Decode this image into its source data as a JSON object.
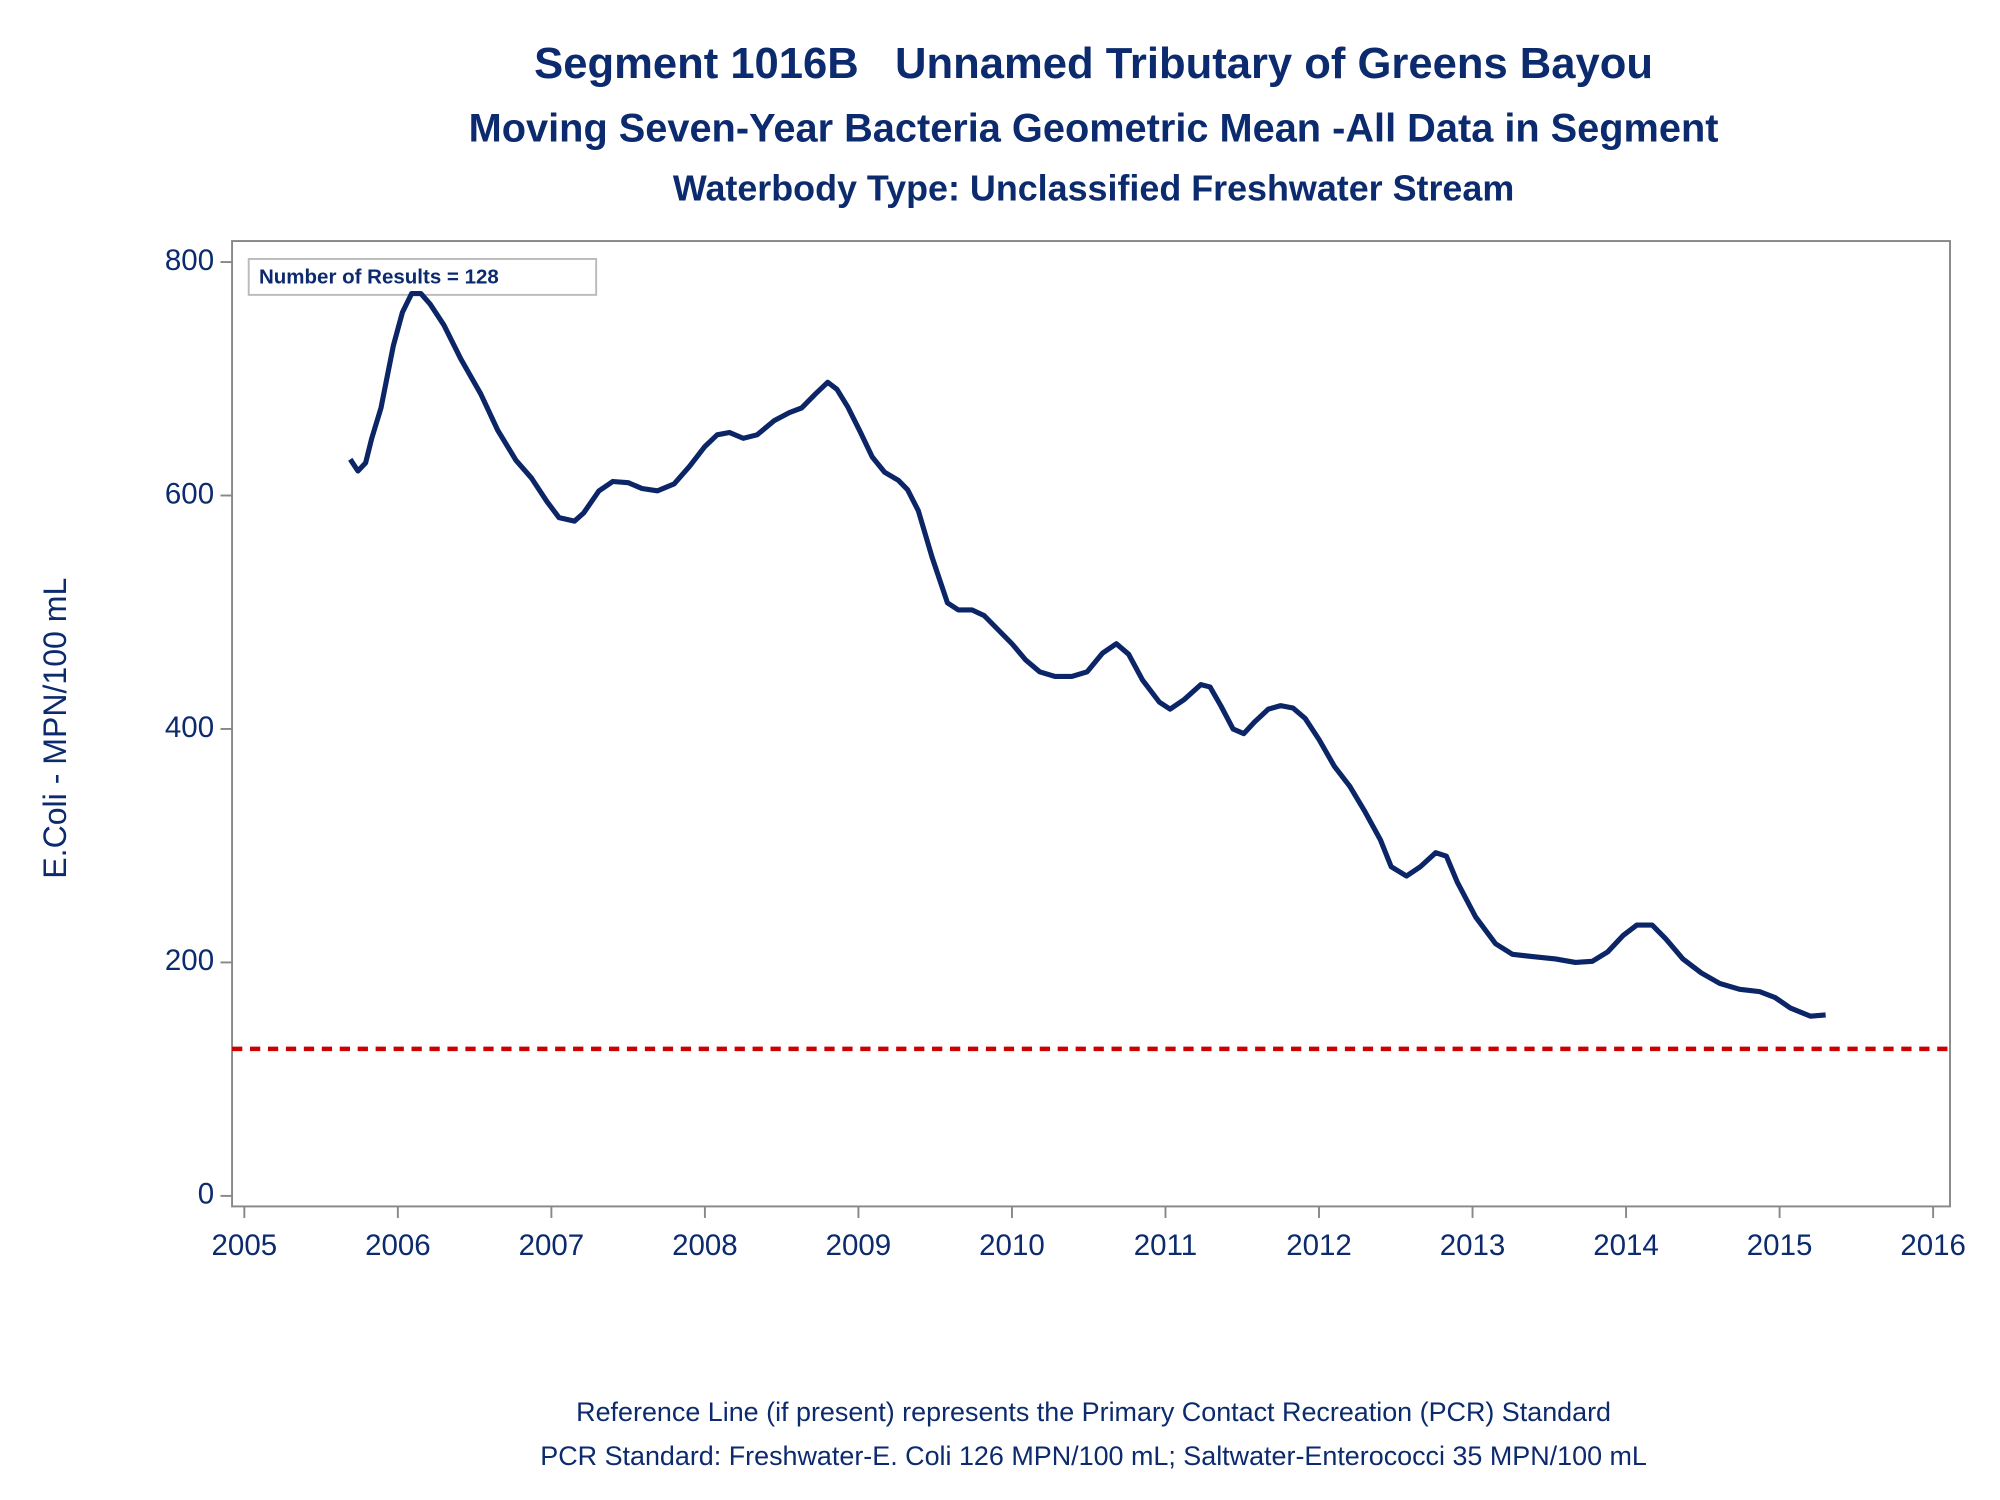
{
  "chart_data": {
    "type": "line",
    "title": "Segment 1016B   Unnamed Tributary of Greens Bayou",
    "subtitle": "Moving Seven-Year Bacteria Geometric Mean -All Data in Segment",
    "subtitle2": "Waterbody Type: Unclassified Freshwater Stream",
    "ylabel": "E.Coli - MPN/100 mL",
    "annotation": "Number of Results = 128",
    "footnotes": [
      "Reference Line (if present) represents the Primary Contact Recreation (PCR) Standard",
      "PCR Standard: Freshwater-E. Coli 126 MPN/100 mL; Saltwater-Enterococci 35 MPN/100 mL"
    ],
    "reference_line": {
      "value": 126,
      "color": "#cc0000"
    },
    "xlim": [
      2004.92,
      2016.11
    ],
    "ylim": [
      -9,
      818
    ],
    "xticks": [
      2005,
      2006,
      2007,
      2008,
      2009,
      2010,
      2011,
      2012,
      2013,
      2014,
      2015,
      2016
    ],
    "yticks": [
      0,
      200,
      400,
      600,
      800
    ],
    "x": [
      2005.69,
      2005.74,
      2005.79,
      2005.83,
      2005.89,
      2005.97,
      2006.03,
      2006.09,
      2006.15,
      2006.21,
      2006.3,
      2006.41,
      2006.54,
      2006.65,
      2006.77,
      2006.87,
      2006.97,
      2007.05,
      2007.15,
      2007.21,
      2007.31,
      2007.4,
      2007.5,
      2007.59,
      2007.69,
      2007.8,
      2007.9,
      2008.0,
      2008.08,
      2008.16,
      2008.25,
      2008.34,
      2008.45,
      2008.55,
      2008.63,
      2008.72,
      2008.8,
      2008.86,
      2008.93,
      2009.01,
      2009.09,
      2009.17,
      2009.26,
      2009.32,
      2009.39,
      2009.48,
      2009.58,
      2009.65,
      2009.74,
      2009.82,
      2009.91,
      2010.0,
      2010.09,
      2010.18,
      2010.28,
      2010.39,
      2010.49,
      2010.59,
      2010.68,
      2010.76,
      2010.85,
      2010.96,
      2011.03,
      2011.12,
      2011.23,
      2011.29,
      2011.36,
      2011.44,
      2011.51,
      2011.58,
      2011.67,
      2011.75,
      2011.83,
      2011.91,
      2012.0,
      2012.1,
      2012.2,
      2012.3,
      2012.4,
      2012.47,
      2012.57,
      2012.66,
      2012.76,
      2012.83,
      2012.9,
      2013.02,
      2013.15,
      2013.26,
      2013.39,
      2013.54,
      2013.67,
      2013.78,
      2013.88,
      2013.98,
      2014.07,
      2014.17,
      2014.26,
      2014.37,
      2014.49,
      2014.61,
      2014.74,
      2014.87,
      2014.97,
      2015.07,
      2015.2,
      2015.3
    ],
    "series": [
      {
        "color": "#0b2566",
        "values": [
          631,
          621,
          628,
          649,
          675,
          728,
          757,
          773,
          773,
          764,
          746,
          717,
          687,
          656,
          630,
          615,
          595,
          581,
          578,
          585,
          604,
          612,
          611,
          606,
          604,
          610,
          625,
          642,
          652,
          654,
          649,
          652,
          664,
          671,
          675,
          687,
          697,
          691,
          676,
          655,
          633,
          620,
          613,
          605,
          587,
          547,
          508,
          502,
          502,
          497,
          485,
          473,
          459,
          449,
          445,
          445,
          449,
          465,
          473,
          464,
          442,
          423,
          417,
          425,
          438,
          436,
          420,
          400,
          396,
          406,
          417,
          420,
          418,
          409,
          391,
          368,
          351,
          329,
          305,
          282,
          274,
          282,
          294,
          291,
          269,
          239,
          216,
          207,
          205,
          203,
          200,
          201,
          209,
          223,
          232,
          232,
          220,
          203,
          191,
          182,
          177,
          175,
          170,
          161,
          154,
          155
        ]
      }
    ]
  }
}
